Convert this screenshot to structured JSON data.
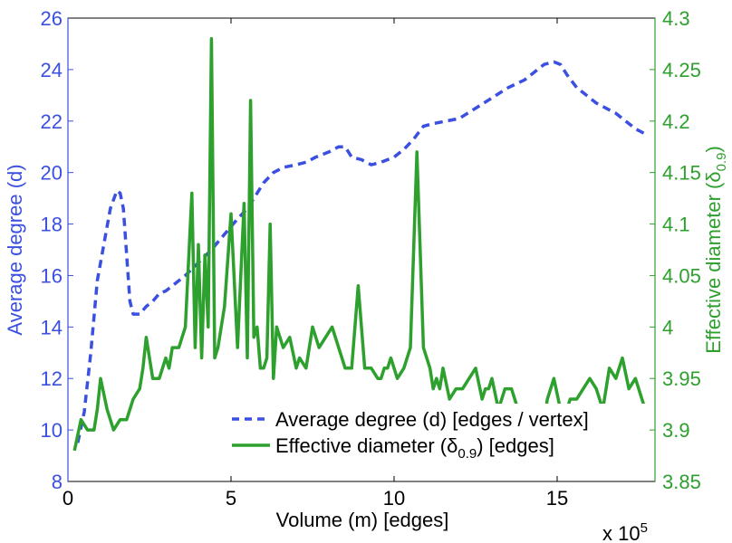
{
  "chart_data": {
    "type": "line",
    "xlabel": "Volume (m) [edges]",
    "x_multiplier": "x 10",
    "x_multiplier_exp": "5",
    "xlim": [
      0,
      18
    ],
    "x_ticks": [
      0,
      5,
      10,
      15
    ],
    "ylabel_left": "Average degree (d)",
    "ylim_left": [
      8,
      26
    ],
    "y_ticks_left": [
      "8",
      "10",
      "12",
      "14",
      "16",
      "18",
      "20",
      "22",
      "24",
      "26"
    ],
    "ylabel_right": {
      "main": "Effective diameter (δ",
      "sub": "0.9",
      "close": ")"
    },
    "ylim_right": [
      3.85,
      4.3
    ],
    "y_ticks_right": [
      "3.85",
      "3.9",
      "3.95",
      "4",
      "4.05",
      "4.1",
      "4.15",
      "4.2",
      "4.25",
      "4.3"
    ],
    "colors": {
      "degree": "#3b4fe0",
      "diameter": "#2da02d",
      "axis": "#000000"
    },
    "legend": {
      "placement": "bottom-right",
      "degree": "Average degree (d) [edges / vertex]",
      "diameter_prefix": "Effective diameter (δ",
      "diameter_sub": "0.9",
      "diameter_suffix": ") [edges]"
    },
    "series": [
      {
        "name": "Average degree (d) [edges / vertex]",
        "axis": "left",
        "style": "dashed",
        "x": [
          0.3,
          0.5,
          0.7,
          0.9,
          1.1,
          1.3,
          1.5,
          1.6,
          1.7,
          1.8,
          1.9,
          2.0,
          2.2,
          2.4,
          2.6,
          2.8,
          3.0,
          3.3,
          3.6,
          4.0,
          4.4,
          4.8,
          5.2,
          5.5,
          5.8,
          6.0,
          6.3,
          6.6,
          7.0,
          7.3,
          7.6,
          8.0,
          8.3,
          8.5,
          8.7,
          9.0,
          9.3,
          9.6,
          10.0,
          10.3,
          10.6,
          10.9,
          11.2,
          11.6,
          12.0,
          12.5,
          13.0,
          13.5,
          14.0,
          14.3,
          14.6,
          14.9,
          15.1,
          15.3,
          15.6,
          15.9,
          16.2,
          16.5,
          16.8,
          17.1,
          17.4,
          17.7
        ],
        "values": [
          9.5,
          10.7,
          13.0,
          15.8,
          17.2,
          18.6,
          19.3,
          19.2,
          18.6,
          16.8,
          15.0,
          14.5,
          14.5,
          14.8,
          15.0,
          15.3,
          15.4,
          15.7,
          16.0,
          16.5,
          17.0,
          17.6,
          18.2,
          18.6,
          19.2,
          19.6,
          20.0,
          20.2,
          20.3,
          20.4,
          20.6,
          20.8,
          21.0,
          21.0,
          20.6,
          20.5,
          20.3,
          20.4,
          20.6,
          20.9,
          21.3,
          21.8,
          21.9,
          22.0,
          22.1,
          22.5,
          22.9,
          23.3,
          23.6,
          23.9,
          24.2,
          24.3,
          24.2,
          23.8,
          23.3,
          23.0,
          22.7,
          22.5,
          22.3,
          22.0,
          21.7,
          21.5
        ]
      },
      {
        "name": "Effective diameter (δ0.9) [edges]",
        "axis": "right",
        "style": "solid",
        "x": [
          0.2,
          0.4,
          0.6,
          0.8,
          0.9,
          1.0,
          1.2,
          1.4,
          1.6,
          1.8,
          2.0,
          2.2,
          2.3,
          2.4,
          2.5,
          2.6,
          2.8,
          3.0,
          3.1,
          3.2,
          3.4,
          3.6,
          3.8,
          3.9,
          4.0,
          4.1,
          4.2,
          4.3,
          4.4,
          4.5,
          4.6,
          4.8,
          5.0,
          5.2,
          5.4,
          5.5,
          5.6,
          5.7,
          5.8,
          5.9,
          6.0,
          6.1,
          6.2,
          6.3,
          6.4,
          6.6,
          6.8,
          7.0,
          7.1,
          7.3,
          7.5,
          7.7,
          7.9,
          8.1,
          8.3,
          8.5,
          8.7,
          8.9,
          9.1,
          9.3,
          9.5,
          9.6,
          9.7,
          9.8,
          9.9,
          10.1,
          10.3,
          10.5,
          10.7,
          10.9,
          11.1,
          11.2,
          11.3,
          11.4,
          11.5,
          11.7,
          11.9,
          12.1,
          12.3,
          12.5,
          12.7,
          12.8,
          12.9,
          13.0,
          13.2,
          13.4,
          13.6,
          13.8,
          14.0,
          14.2,
          14.4,
          14.6,
          14.7,
          14.9,
          15.1,
          15.2,
          15.3,
          15.4,
          15.6,
          15.8,
          16.0,
          16.2,
          16.4,
          16.6,
          16.8,
          17.0,
          17.2,
          17.4,
          17.6,
          17.7
        ],
        "values": [
          3.88,
          3.91,
          3.9,
          3.9,
          3.92,
          3.95,
          3.92,
          3.9,
          3.91,
          3.91,
          3.93,
          3.94,
          3.96,
          3.99,
          3.97,
          3.95,
          3.95,
          3.97,
          3.96,
          3.98,
          3.98,
          4.0,
          4.13,
          3.98,
          4.08,
          3.97,
          4.07,
          4.0,
          4.28,
          3.97,
          3.98,
          4.02,
          4.11,
          3.98,
          4.12,
          3.97,
          4.22,
          3.99,
          4.0,
          3.96,
          3.96,
          3.97,
          4.1,
          3.95,
          4.0,
          3.98,
          3.99,
          3.96,
          3.97,
          3.96,
          4.0,
          3.98,
          3.99,
          4.0,
          3.98,
          3.96,
          3.96,
          4.04,
          3.96,
          3.96,
          3.95,
          3.95,
          3.96,
          3.96,
          3.97,
          3.95,
          3.96,
          3.98,
          4.17,
          3.98,
          3.96,
          3.94,
          3.95,
          3.94,
          3.96,
          3.93,
          3.94,
          3.94,
          3.95,
          3.96,
          3.93,
          3.94,
          3.94,
          3.95,
          3.92,
          3.94,
          3.94,
          3.92,
          3.91,
          3.92,
          3.92,
          3.91,
          3.93,
          3.95,
          3.92,
          3.92,
          3.92,
          3.93,
          3.93,
          3.94,
          3.95,
          3.94,
          3.92,
          3.96,
          3.95,
          3.97,
          3.94,
          3.95,
          3.93,
          3.92
        ]
      }
    ]
  }
}
